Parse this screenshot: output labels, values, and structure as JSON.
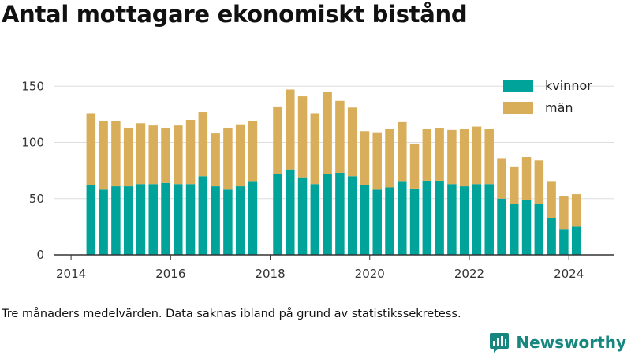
{
  "title": "Antal mottagare ekonomiskt bistånd",
  "note": "Tre månaders medelvärden. Data saknas ibland på grund av statistikssekretess.",
  "brand": "Newsworthy",
  "colors": {
    "kvinnor": "#00a39a",
    "man": "#d9ae5a",
    "grid": "#dddddd",
    "axis": "#333333",
    "brand": "#16867f"
  },
  "chart_data": {
    "type": "bar",
    "stacked": true,
    "title": "Antal mottagare ekonomiskt bistånd",
    "x_ticks": [
      "2014",
      "2016",
      "2018",
      "2020",
      "2022",
      "2024"
    ],
    "y_ticks": [
      "0",
      "50",
      "100",
      "150"
    ],
    "ylim": [
      0,
      160
    ],
    "grid": true,
    "legend_position": "top-right",
    "x": [
      2014.4,
      2014.65,
      2014.9,
      2015.15,
      2015.4,
      2015.65,
      2015.9,
      2016.15,
      2016.4,
      2016.65,
      2016.9,
      2017.15,
      2017.4,
      2017.65,
      2018.15,
      2018.4,
      2018.65,
      2018.9,
      2019.15,
      2019.4,
      2019.65,
      2019.9,
      2020.15,
      2020.4,
      2020.65,
      2020.9,
      2021.15,
      2021.4,
      2021.65,
      2021.9,
      2022.15,
      2022.4,
      2022.65,
      2022.9,
      2023.15,
      2023.4,
      2023.65,
      2023.9,
      2024.15
    ],
    "series": [
      {
        "name": "kvinnor",
        "values": [
          62,
          58,
          61,
          61,
          63,
          63,
          64,
          63,
          63,
          70,
          61,
          58,
          61,
          65,
          72,
          76,
          69,
          63,
          72,
          73,
          70,
          62,
          58,
          60,
          65,
          59,
          66,
          66,
          63,
          61,
          63,
          63,
          50,
          45,
          49,
          45,
          33,
          23,
          25
        ]
      },
      {
        "name": "män",
        "values": [
          64,
          61,
          58,
          52,
          54,
          52,
          49,
          52,
          57,
          57,
          47,
          55,
          55,
          54,
          60,
          71,
          72,
          63,
          73,
          64,
          61,
          48,
          51,
          52,
          53,
          40,
          46,
          47,
          48,
          51,
          51,
          49,
          36,
          33,
          38,
          39,
          32,
          29,
          29
        ]
      }
    ]
  }
}
